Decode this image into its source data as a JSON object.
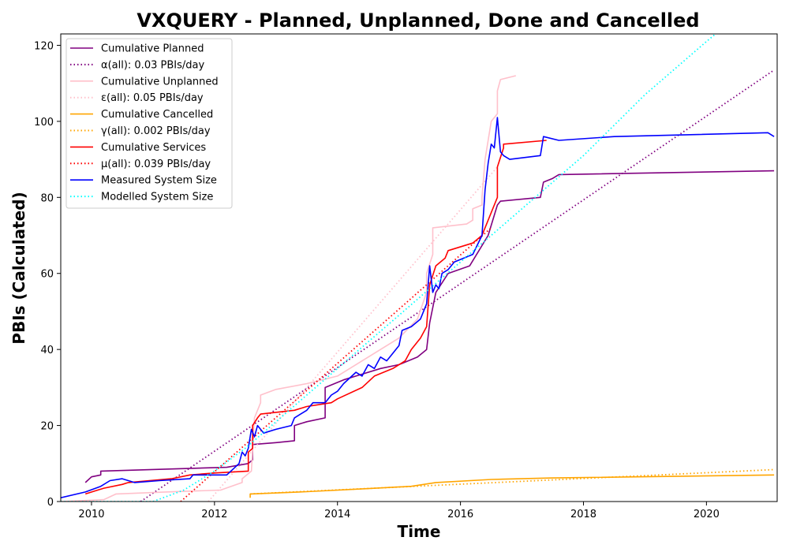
{
  "chart_data": {
    "type": "line",
    "title": "VXQUERY - Planned, Unplanned, Done  and Cancelled",
    "xlabel": "Time",
    "ylabel": "PBIs (Calculated)",
    "xlim": [
      2009.5,
      2021.15
    ],
    "ylim": [
      0,
      123
    ],
    "x_ticks": [
      2010,
      2012,
      2014,
      2016,
      2018,
      2020
    ],
    "y_ticks": [
      0,
      20,
      40,
      60,
      80,
      100,
      120
    ],
    "grid": false,
    "legend_position": "top-left",
    "series": [
      {
        "name": "Cumulative Planned",
        "style": "solid",
        "color": "#800080",
        "points": [
          [
            2009.9,
            5
          ],
          [
            2010.0,
            6.5
          ],
          [
            2010.15,
            7
          ],
          [
            2010.15,
            8
          ],
          [
            2012.2,
            9
          ],
          [
            2012.55,
            10
          ],
          [
            2012.62,
            11
          ],
          [
            2012.62,
            15
          ],
          [
            2013.0,
            15.5
          ],
          [
            2013.3,
            16
          ],
          [
            2013.3,
            20
          ],
          [
            2013.5,
            21
          ],
          [
            2013.8,
            22
          ],
          [
            2013.8,
            30
          ],
          [
            2014.1,
            32
          ],
          [
            2014.3,
            33
          ],
          [
            2014.7,
            35
          ],
          [
            2015.0,
            36
          ],
          [
            2015.3,
            38
          ],
          [
            2015.45,
            40
          ],
          [
            2015.5,
            47
          ],
          [
            2015.6,
            55
          ],
          [
            2015.8,
            60
          ],
          [
            2016.15,
            62
          ],
          [
            2016.3,
            66
          ],
          [
            2016.45,
            70
          ],
          [
            2016.6,
            78
          ],
          [
            2016.65,
            79
          ],
          [
            2017.3,
            80
          ],
          [
            2017.35,
            84
          ],
          [
            2017.5,
            85
          ],
          [
            2017.6,
            86
          ],
          [
            2021.1,
            87
          ]
        ]
      },
      {
        "name": "α(all): 0.03 PBIs/day",
        "style": "dotted",
        "color": "#800080",
        "points": [
          [
            2010.8,
            0
          ],
          [
            2021.1,
            113.5
          ]
        ]
      },
      {
        "name": "Cumulative Unplanned",
        "style": "solid",
        "color": "#ffc0cb",
        "points": [
          [
            2009.5,
            0
          ],
          [
            2010.2,
            0.5
          ],
          [
            2010.4,
            2
          ],
          [
            2011.2,
            2.5
          ],
          [
            2012.1,
            3
          ],
          [
            2012.45,
            5
          ],
          [
            2012.45,
            6
          ],
          [
            2012.6,
            8
          ],
          [
            2012.65,
            22
          ],
          [
            2012.75,
            26
          ],
          [
            2012.75,
            28
          ],
          [
            2013.0,
            29.5
          ],
          [
            2013.5,
            31
          ],
          [
            2014.0,
            33
          ],
          [
            2014.5,
            38
          ],
          [
            2015.0,
            43
          ],
          [
            2015.3,
            48
          ],
          [
            2015.45,
            55
          ],
          [
            2015.45,
            60
          ],
          [
            2015.55,
            65
          ],
          [
            2015.55,
            72
          ],
          [
            2016.1,
            73
          ],
          [
            2016.2,
            74
          ],
          [
            2016.2,
            77
          ],
          [
            2016.35,
            78
          ],
          [
            2016.35,
            80
          ],
          [
            2016.4,
            90
          ],
          [
            2016.5,
            100
          ],
          [
            2016.6,
            102
          ],
          [
            2016.6,
            108
          ],
          [
            2016.65,
            111
          ],
          [
            2016.9,
            112
          ]
        ]
      },
      {
        "name": "ε(all): 0.05 PBIs/day",
        "style": "dotted",
        "color": "#ffc0cb",
        "points": [
          [
            2011.9,
            0
          ],
          [
            2016.6,
            88
          ]
        ]
      },
      {
        "name": "Cumulative Cancelled",
        "style": "solid",
        "color": "#ffa500",
        "points": [
          [
            2012.58,
            1
          ],
          [
            2012.58,
            2
          ],
          [
            2013.5,
            2.6
          ],
          [
            2014.5,
            3.4
          ],
          [
            2015.2,
            4
          ],
          [
            2015.6,
            5
          ],
          [
            2016.5,
            5.8
          ],
          [
            2017.5,
            6.2
          ],
          [
            2021.1,
            7
          ]
        ]
      },
      {
        "name": "γ(all): 0.002 PBIs/day",
        "style": "dotted",
        "color": "#ffa500",
        "points": [
          [
            2012.58,
            2
          ],
          [
            2021.1,
            8.4
          ]
        ]
      },
      {
        "name": "Cumulative Services",
        "style": "solid",
        "color": "#ff0000",
        "points": [
          [
            2009.9,
            2
          ],
          [
            2010.2,
            3.5
          ],
          [
            2010.5,
            4.5
          ],
          [
            2010.6,
            5
          ],
          [
            2011.3,
            6
          ],
          [
            2011.6,
            7
          ],
          [
            2012.0,
            7.5
          ],
          [
            2012.55,
            8
          ],
          [
            2012.55,
            13
          ],
          [
            2012.62,
            14
          ],
          [
            2012.62,
            20
          ],
          [
            2012.7,
            22
          ],
          [
            2012.75,
            23
          ],
          [
            2013.3,
            24
          ],
          [
            2013.5,
            25
          ],
          [
            2013.9,
            26
          ],
          [
            2014.0,
            27
          ],
          [
            2014.4,
            30
          ],
          [
            2014.6,
            33
          ],
          [
            2014.9,
            35
          ],
          [
            2015.1,
            37
          ],
          [
            2015.2,
            40
          ],
          [
            2015.35,
            43
          ],
          [
            2015.45,
            46
          ],
          [
            2015.5,
            57
          ],
          [
            2015.6,
            62
          ],
          [
            2015.75,
            64
          ],
          [
            2015.8,
            66
          ],
          [
            2016.2,
            68
          ],
          [
            2016.35,
            70
          ],
          [
            2016.45,
            74
          ],
          [
            2016.6,
            80
          ],
          [
            2016.6,
            88
          ],
          [
            2016.7,
            93
          ],
          [
            2016.7,
            94
          ],
          [
            2017.4,
            95
          ]
        ]
      },
      {
        "name": "μ(all): 0.039 PBIs/day",
        "style": "dotted",
        "color": "#ff0000",
        "points": [
          [
            2011.45,
            0
          ],
          [
            2016.5,
            72
          ]
        ]
      },
      {
        "name": "Measured System Size",
        "style": "solid",
        "color": "#0000ff",
        "points": [
          [
            2009.5,
            1
          ],
          [
            2009.9,
            2.5
          ],
          [
            2010.15,
            4
          ],
          [
            2010.3,
            5.5
          ],
          [
            2010.5,
            6
          ],
          [
            2010.7,
            5
          ],
          [
            2011.1,
            5.5
          ],
          [
            2011.6,
            6
          ],
          [
            2011.65,
            7
          ],
          [
            2012.2,
            7
          ],
          [
            2012.4,
            10
          ],
          [
            2012.45,
            13
          ],
          [
            2012.5,
            12
          ],
          [
            2012.55,
            14
          ],
          [
            2012.6,
            19
          ],
          [
            2012.65,
            17
          ],
          [
            2012.7,
            20
          ],
          [
            2012.8,
            18
          ],
          [
            2013.0,
            19
          ],
          [
            2013.25,
            20
          ],
          [
            2013.3,
            22
          ],
          [
            2013.5,
            24
          ],
          [
            2013.6,
            26
          ],
          [
            2013.8,
            26
          ],
          [
            2013.9,
            28
          ],
          [
            2014.0,
            29
          ],
          [
            2014.1,
            31
          ],
          [
            2014.3,
            34
          ],
          [
            2014.4,
            33
          ],
          [
            2014.5,
            36
          ],
          [
            2014.6,
            35
          ],
          [
            2014.7,
            38
          ],
          [
            2014.8,
            37
          ],
          [
            2014.9,
            39
          ],
          [
            2015.0,
            41
          ],
          [
            2015.05,
            45
          ],
          [
            2015.2,
            46
          ],
          [
            2015.35,
            48
          ],
          [
            2015.45,
            52
          ],
          [
            2015.5,
            62
          ],
          [
            2015.55,
            55
          ],
          [
            2015.6,
            57
          ],
          [
            2015.65,
            56
          ],
          [
            2015.7,
            60
          ],
          [
            2015.8,
            61
          ],
          [
            2015.9,
            63
          ],
          [
            2016.2,
            65
          ],
          [
            2016.35,
            70
          ],
          [
            2016.4,
            82
          ],
          [
            2016.45,
            89
          ],
          [
            2016.5,
            94
          ],
          [
            2016.55,
            93
          ],
          [
            2016.6,
            101
          ],
          [
            2016.65,
            92
          ],
          [
            2016.7,
            91
          ],
          [
            2016.8,
            90
          ],
          [
            2017.3,
            91
          ],
          [
            2017.35,
            96
          ],
          [
            2017.6,
            95
          ],
          [
            2018.5,
            96
          ],
          [
            2021.0,
            97
          ],
          [
            2021.1,
            96
          ]
        ]
      },
      {
        "name": "Modelled System Size",
        "style": "dotted",
        "color": "#00ffff",
        "points": [
          [
            2009.5,
            0
          ],
          [
            2011.0,
            0
          ],
          [
            2011.5,
            3
          ],
          [
            2012.0,
            8
          ],
          [
            2012.5,
            14
          ],
          [
            2013.0,
            21
          ],
          [
            2013.5,
            28
          ],
          [
            2014.0,
            35
          ],
          [
            2014.5,
            42
          ],
          [
            2015.0,
            49
          ],
          [
            2015.5,
            56
          ],
          [
            2016.0,
            63
          ],
          [
            2016.5,
            70
          ],
          [
            2017.0,
            77
          ],
          [
            2017.5,
            84
          ],
          [
            2018.0,
            91
          ],
          [
            2018.5,
            99
          ],
          [
            2019.0,
            107
          ],
          [
            2019.5,
            114
          ],
          [
            2020.0,
            121
          ],
          [
            2020.15,
            123
          ]
        ]
      }
    ]
  }
}
